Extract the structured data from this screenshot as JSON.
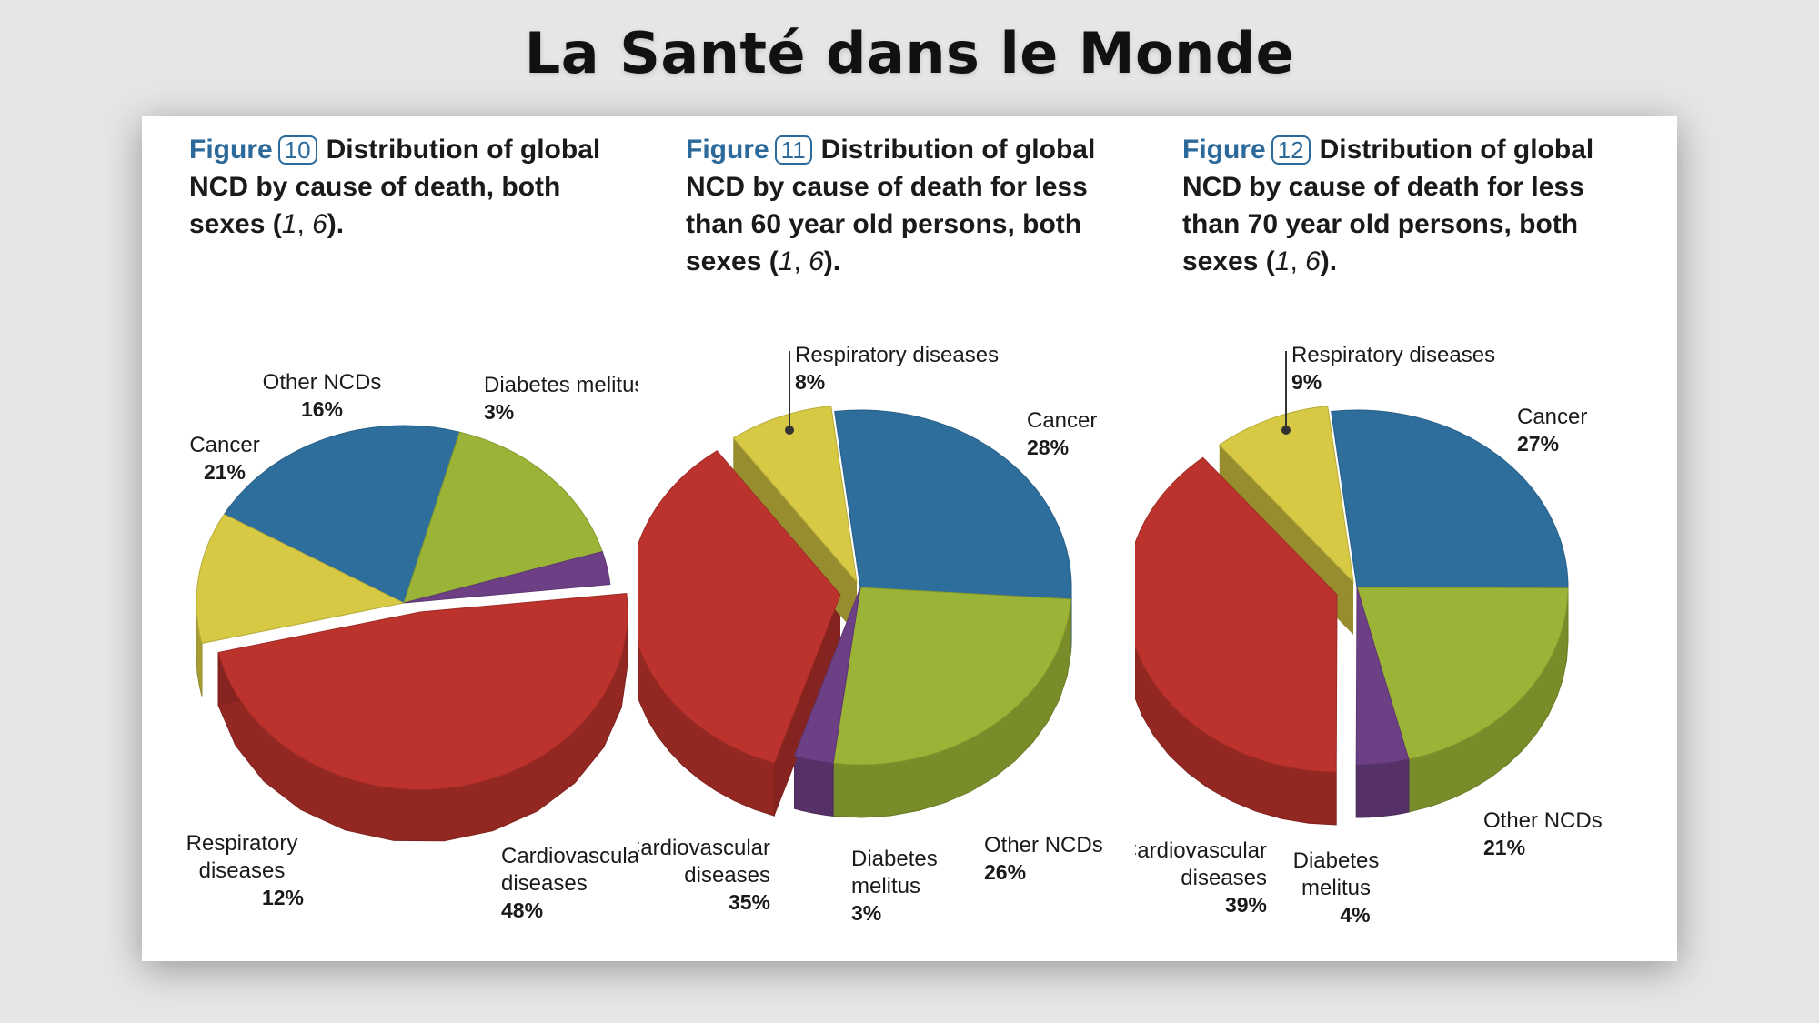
{
  "page_title": "La Santé dans le Monde",
  "colors": {
    "cancer": "#2e6e9c",
    "other": "#9bb336",
    "diabetes": "#6d3f85",
    "cardio": "#bc322c",
    "respiratory": "#d7c943",
    "caption_accent": "#2b6a9b"
  },
  "chart_data": [
    {
      "type": "pie",
      "figure_label": "Figure",
      "figure_number": "10",
      "title": "Distribution of global NCD by cause of death, both sexes",
      "caption_text": "Distribution of global NCD by cause of death, both sexes (",
      "caption_refs": [
        "1",
        "6"
      ],
      "caption_end": ").",
      "categories": [
        "Cancer",
        "Other NCDs",
        "Diabetes melitus",
        "Cardiovascular diseases",
        "Respiratory diseases"
      ],
      "values": [
        21,
        16,
        3,
        48,
        12
      ],
      "labels": [
        {
          "key": "cancer",
          "lines": [
            "Cancer"
          ],
          "pct": "21%"
        },
        {
          "key": "other",
          "lines": [
            "Other NCDs"
          ],
          "pct": "16%"
        },
        {
          "key": "diabetes",
          "lines": [
            "Diabetes melitus"
          ],
          "pct": "3%"
        },
        {
          "key": "cardio",
          "lines": [
            "Cardiovascular",
            "diseases"
          ],
          "pct": "48%"
        },
        {
          "key": "respiratory",
          "lines": [
            "Respiratory",
            "diseases"
          ],
          "pct": "12%"
        }
      ]
    },
    {
      "type": "pie",
      "figure_label": "Figure",
      "figure_number": "11",
      "title": "Distribution of global NCD by cause of death for less than 60 year old persons, both sexes",
      "caption_text": "Distribution of global NCD by cause of death for less than 60 year old persons, both sexes (",
      "caption_refs": [
        "1",
        "6"
      ],
      "caption_end": ").",
      "categories": [
        "Cancer",
        "Other NCDs",
        "Diabetes melitus",
        "Cardiovascular diseases",
        "Respiratory diseases"
      ],
      "values": [
        28,
        26,
        3,
        35,
        8
      ],
      "labels": [
        {
          "key": "cancer",
          "lines": [
            "Cancer"
          ],
          "pct": "28%"
        },
        {
          "key": "other",
          "lines": [
            "Other NCDs"
          ],
          "pct": "26%"
        },
        {
          "key": "diabetes",
          "lines": [
            "Diabetes",
            "melitus"
          ],
          "pct": "3%"
        },
        {
          "key": "cardio",
          "lines": [
            "Cardiovascular",
            "diseases"
          ],
          "pct": "35%"
        },
        {
          "key": "respiratory",
          "lines": [
            "Respiratory diseases"
          ],
          "pct": "8%"
        }
      ]
    },
    {
      "type": "pie",
      "figure_label": "Figure",
      "figure_number": "12",
      "title": "Distribution of global NCD by cause of death for less than 70 year old persons, both sexes",
      "caption_text": "Distribution of global NCD by cause of death for less than 70 year old persons, both sexes (",
      "caption_refs": [
        "1",
        "6"
      ],
      "caption_end": ").",
      "categories": [
        "Cancer",
        "Other NCDs",
        "Diabetes melitus",
        "Cardiovascular diseases",
        "Respiratory diseases"
      ],
      "values": [
        27,
        21,
        4,
        39,
        9
      ],
      "labels": [
        {
          "key": "cancer",
          "lines": [
            "Cancer"
          ],
          "pct": "27%"
        },
        {
          "key": "other",
          "lines": [
            "Other NCDs"
          ],
          "pct": "21%"
        },
        {
          "key": "diabetes",
          "lines": [
            "Diabetes",
            "melitus"
          ],
          "pct": "4%"
        },
        {
          "key": "cardio",
          "lines": [
            "Cardiovascular",
            "diseases"
          ],
          "pct": "39%"
        },
        {
          "key": "respiratory",
          "lines": [
            "Respiratory diseases"
          ],
          "pct": "9%"
        }
      ]
    }
  ]
}
